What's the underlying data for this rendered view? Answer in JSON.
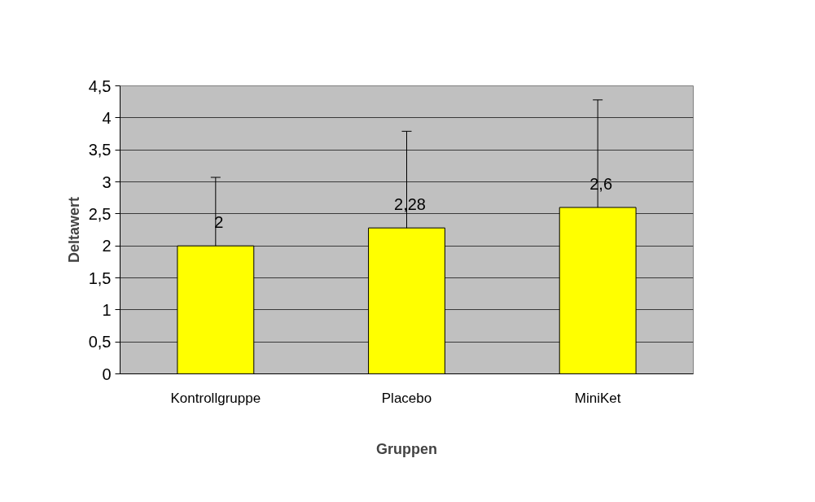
{
  "chart_data": {
    "type": "bar",
    "xlabel": "Gruppen",
    "ylabel": "Deltawert",
    "categories": [
      "Kontrollgruppe",
      "Placebo",
      "MiniKet"
    ],
    "values": [
      2,
      2.28,
      2.6
    ],
    "errors": [
      1.07,
      1.51,
      1.68
    ],
    "value_labels": [
      "2",
      "2,28",
      "2,6"
    ],
    "color": "#ffff00",
    "ylim": [
      0,
      4.5
    ],
    "yticks": [
      0,
      {
        "value": 0.5,
        "label": "0,5"
      },
      1,
      {
        "value": 1.5,
        "label": "1,5"
      },
      2,
      {
        "value": 2.5,
        "label": "2,5"
      },
      3,
      {
        "value": 3.5,
        "label": "3,5"
      },
      4,
      {
        "value": 4.5,
        "label": "4,5"
      }
    ],
    "grid": "y"
  }
}
